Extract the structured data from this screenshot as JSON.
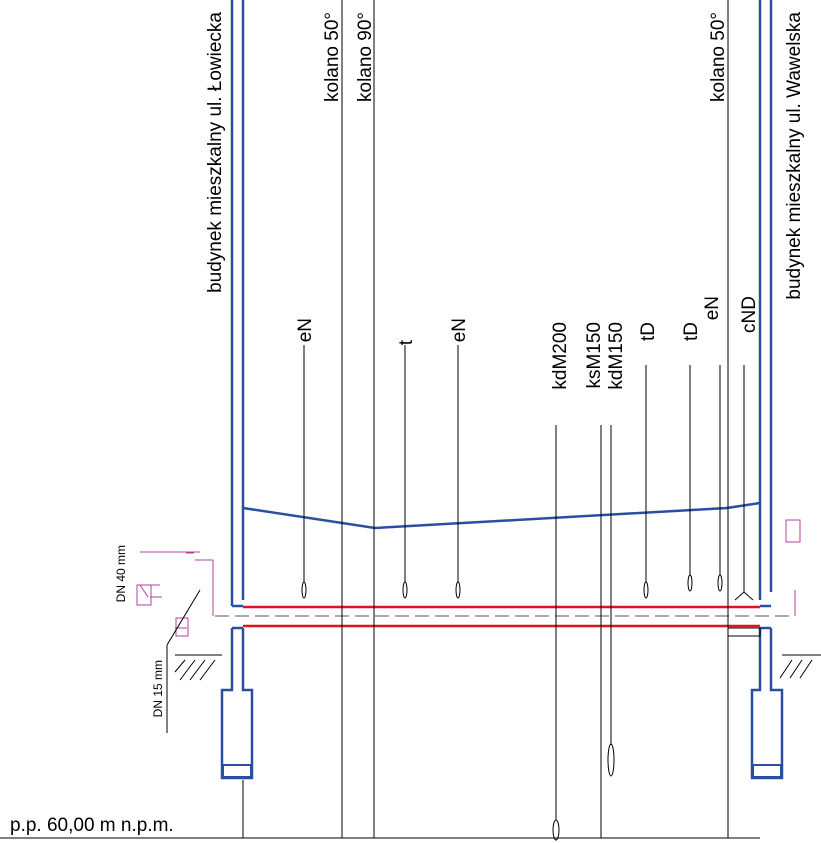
{
  "buildings": [
    "budynek mieszkalny ul. Łowiecka",
    "budynek mieszkalny ul. Wawelska"
  ],
  "line_labels": [
    "kolano 50°",
    "kolano 90°",
    "eN",
    "t",
    "eN",
    "kdM200",
    "ksM150",
    "kdM150",
    "tD",
    "tD",
    "eN",
    "cND",
    "kolano 50°"
  ],
  "pipe_labels": [
    "DN 40 mm",
    "DN 15 mm"
  ],
  "ground_level": "p.p. 60,00 m n.p.m."
}
